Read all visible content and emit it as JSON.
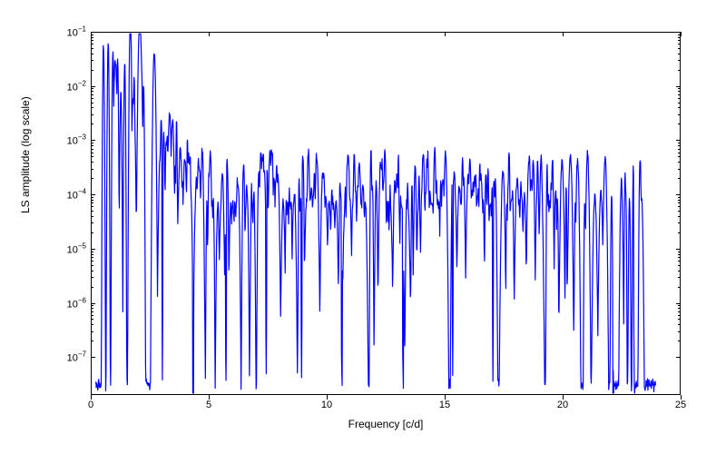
{
  "chart": {
    "type": "line",
    "xlabel": "Frequency [c/d]",
    "ylabel": "LS amplitude (log scale)",
    "xlim": [
      0,
      25
    ],
    "ylim_exp": [
      -7.7,
      -1
    ],
    "yscale": "log",
    "line_color": "#0000ff",
    "line_width": 1.2,
    "background_color": "#ffffff",
    "border_color": "#000000",
    "label_fontsize": 12,
    "tick_fontsize": 11,
    "x_ticks": [
      0,
      5,
      10,
      15,
      20,
      25
    ],
    "y_tick_exponents": [
      -7,
      -6,
      -5,
      -4,
      -3,
      -2,
      -1
    ]
  }
}
